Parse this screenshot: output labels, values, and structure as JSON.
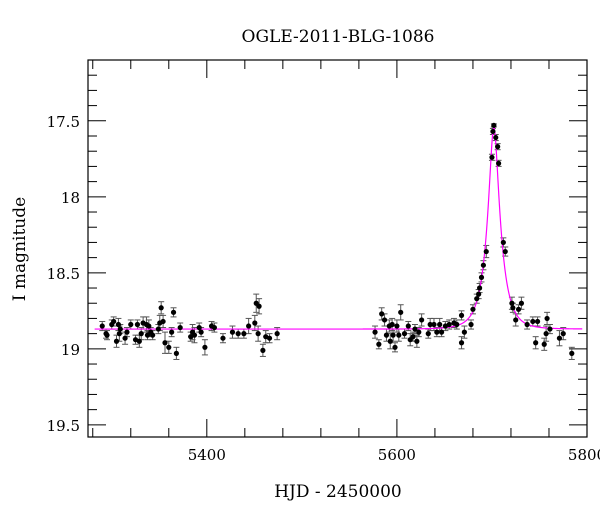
{
  "chart_data": {
    "type": "scatter",
    "title": "OGLE-2011-BLG-1086",
    "xlabel": "HJD - 2450000",
    "ylabel": "I magnitude",
    "xlim": [
      5275,
      5800
    ],
    "ylim": [
      17.1,
      19.58
    ],
    "y_inverted": true,
    "x_major_ticks": [
      5400,
      5600,
      5800
    ],
    "x_minor_step": 40,
    "y_major_ticks": [
      17.5,
      18,
      18.5,
      19,
      19.5
    ],
    "y_minor_step": 0.1,
    "grid": false,
    "colors": {
      "points": "#000000",
      "errorbars": "#555555",
      "model": "#ff00ff"
    },
    "model": {
      "type": "point-lens",
      "t0": 5702,
      "u0": 0.305,
      "tE": 14,
      "baseline": 18.87,
      "label": ""
    },
    "points": [
      [
        5290,
        18.85,
        0.03
      ],
      [
        5294,
        18.9,
        0.03
      ],
      [
        5295,
        18.91,
        0.03
      ],
      [
        5300,
        18.84,
        0.03
      ],
      [
        5302,
        18.82,
        0.03
      ],
      [
        5305,
        18.95,
        0.04
      ],
      [
        5307,
        18.84,
        0.04
      ],
      [
        5308,
        18.9,
        0.05
      ],
      [
        5309,
        18.87,
        0.03
      ],
      [
        5314,
        18.93,
        0.04
      ],
      [
        5316,
        18.89,
        0.03
      ],
      [
        5320,
        18.84,
        0.03
      ],
      [
        5325,
        18.94,
        0.03
      ],
      [
        5327,
        18.84,
        0.03
      ],
      [
        5329,
        18.95,
        0.04
      ],
      [
        5331,
        18.9,
        0.04
      ],
      [
        5333,
        18.83,
        0.04
      ],
      [
        5336.5,
        18.84,
        0.05
      ],
      [
        5337.6,
        18.91,
        0.03
      ],
      [
        5339,
        18.85,
        0.04
      ],
      [
        5341,
        18.89,
        0.03
      ],
      [
        5343,
        18.91,
        0.03
      ],
      [
        5349,
        18.87,
        0.03
      ],
      [
        5350.5,
        18.83,
        0.05
      ],
      [
        5352,
        18.73,
        0.04
      ],
      [
        5354,
        18.82,
        0.04
      ],
      [
        5356,
        18.96,
        0.07
      ],
      [
        5360,
        18.99,
        0.04
      ],
      [
        5363,
        18.89,
        0.03
      ],
      [
        5365,
        18.76,
        0.03
      ],
      [
        5368,
        19.03,
        0.04
      ],
      [
        5372,
        18.86,
        0.03
      ],
      [
        5383,
        18.92,
        0.03
      ],
      [
        5385,
        18.89,
        0.05
      ],
      [
        5387,
        18.91,
        0.05
      ],
      [
        5392,
        18.86,
        0.03
      ],
      [
        5394,
        18.89,
        0.03
      ],
      [
        5398,
        18.99,
        0.05
      ],
      [
        5405,
        18.85,
        0.03
      ],
      [
        5408,
        18.86,
        0.03
      ],
      [
        5417,
        18.93,
        0.03
      ],
      [
        5427,
        18.89,
        0.04
      ],
      [
        5433,
        18.9,
        0.03
      ],
      [
        5439,
        18.9,
        0.03
      ],
      [
        5444,
        18.85,
        0.05
      ],
      [
        5450.5,
        18.83,
        0.05
      ],
      [
        5452,
        18.7,
        0.06
      ],
      [
        5455,
        18.72,
        0.05
      ],
      [
        5454,
        18.9,
        0.05
      ],
      [
        5459,
        19.01,
        0.04
      ],
      [
        5462,
        18.92,
        0.04
      ],
      [
        5466,
        18.93,
        0.03
      ],
      [
        5474,
        18.9,
        0.04
      ],
      [
        5577,
        18.89,
        0.04
      ],
      [
        5581,
        18.97,
        0.03
      ],
      [
        5584,
        18.77,
        0.04
      ],
      [
        5587,
        18.81,
        0.04
      ],
      [
        5589,
        18.91,
        0.04
      ],
      [
        5592,
        18.85,
        0.04
      ],
      [
        5593,
        18.95,
        0.05
      ],
      [
        5595,
        18.84,
        0.04
      ],
      [
        5596,
        18.91,
        0.04
      ],
      [
        5598,
        18.99,
        0.03
      ],
      [
        5600,
        18.85,
        0.04
      ],
      [
        5602,
        18.91,
        0.04
      ],
      [
        5604,
        18.76,
        0.05
      ],
      [
        5608,
        18.9,
        0.03
      ],
      [
        5612,
        18.85,
        0.03
      ],
      [
        5614,
        18.94,
        0.04
      ],
      [
        5617,
        18.92,
        0.03
      ],
      [
        5619,
        18.87,
        0.03
      ],
      [
        5621,
        18.95,
        0.04
      ],
      [
        5623,
        18.89,
        0.03
      ],
      [
        5626,
        18.81,
        0.04
      ],
      [
        5633,
        18.9,
        0.03
      ],
      [
        5635,
        18.84,
        0.04
      ],
      [
        5639,
        18.84,
        0.04
      ],
      [
        5642,
        18.89,
        0.03
      ],
      [
        5645,
        18.84,
        0.04
      ],
      [
        5647,
        18.89,
        0.03
      ],
      [
        5651,
        18.85,
        0.03
      ],
      [
        5655,
        18.84,
        0.03
      ],
      [
        5660,
        18.83,
        0.03
      ],
      [
        5663,
        18.84,
        0.03
      ],
      [
        5668,
        18.96,
        0.04
      ],
      [
        5668,
        18.78,
        0.03
      ],
      [
        5671,
        18.89,
        0.04
      ],
      [
        5678,
        18.84,
        0.03
      ],
      [
        5680,
        18.74,
        0.03
      ],
      [
        5684,
        18.67,
        0.03
      ],
      [
        5686,
        18.64,
        0.03
      ],
      [
        5687,
        18.6,
        0.03
      ],
      [
        5689,
        18.53,
        0.03
      ],
      [
        5691,
        18.45,
        0.03
      ],
      [
        5694,
        18.36,
        0.04
      ],
      [
        5700,
        17.74,
        0.02
      ],
      [
        5701,
        17.57,
        0.02
      ],
      [
        5702,
        17.53,
        0.01
      ],
      [
        5704,
        17.61,
        0.02
      ],
      [
        5706,
        17.67,
        0.02
      ],
      [
        5707,
        17.78,
        0.02
      ],
      [
        5712,
        18.3,
        0.03
      ],
      [
        5714,
        18.36,
        0.03
      ],
      [
        5721,
        18.7,
        0.04
      ],
      [
        5722,
        18.73,
        0.03
      ],
      [
        5725,
        18.81,
        0.04
      ],
      [
        5728,
        18.74,
        0.03
      ],
      [
        5731,
        18.7,
        0.04
      ],
      [
        5737,
        18.84,
        0.03
      ],
      [
        5743,
        18.82,
        0.03
      ],
      [
        5748,
        18.82,
        0.03
      ],
      [
        5746,
        18.96,
        0.04
      ],
      [
        5755,
        18.97,
        0.04
      ],
      [
        5758,
        18.8,
        0.04
      ],
      [
        5757,
        18.9,
        0.05
      ],
      [
        5761,
        18.87,
        0.03
      ],
      [
        5771,
        18.93,
        0.05
      ],
      [
        5775,
        18.9,
        0.04
      ],
      [
        5784,
        19.03,
        0.04
      ]
    ]
  }
}
